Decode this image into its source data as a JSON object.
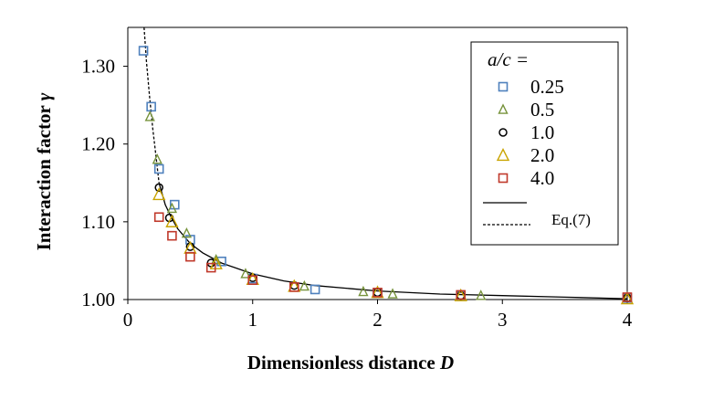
{
  "chart_data": {
    "type": "scatter",
    "xlabel": "Dimensionless distance",
    "xlabel_var": "D",
    "ylabel": "Interaction factor",
    "ylabel_var": "γ",
    "xlim": [
      0,
      4
    ],
    "ylim": [
      1.0,
      1.35
    ],
    "x_ticks": [
      0,
      1,
      2,
      3,
      4
    ],
    "x_tick_labels": [
      "0",
      "1",
      "2",
      "3",
      "4"
    ],
    "y_ticks": [
      1.0,
      1.1,
      1.2,
      1.3
    ],
    "y_tick_labels": [
      "1.00",
      "1.10",
      "1.20",
      "1.30"
    ],
    "grid": false,
    "legend": {
      "title": "a/c =",
      "placement": "top-right",
      "curve_labels": [
        "",
        "Eq.(7)"
      ]
    },
    "series": [
      {
        "name": "0.25",
        "marker": "square",
        "color": "#4f81bd",
        "points": [
          [
            0.125,
            1.32
          ],
          [
            0.1875,
            1.248
          ],
          [
            0.25,
            1.168
          ],
          [
            0.375,
            1.122
          ],
          [
            0.5,
            1.077
          ],
          [
            0.75,
            1.049
          ],
          [
            1.0,
            1.027
          ],
          [
            1.5,
            1.013
          ],
          [
            2.0,
            1.008
          ],
          [
            2.667,
            1.005
          ],
          [
            4.0,
            1.002
          ]
        ]
      },
      {
        "name": "0.5",
        "marker": "triangle",
        "color": "#77933c",
        "points": [
          [
            0.177,
            1.235
          ],
          [
            0.236,
            1.18
          ],
          [
            0.354,
            1.117
          ],
          [
            0.471,
            1.085
          ],
          [
            0.707,
            1.051
          ],
          [
            0.943,
            1.033
          ],
          [
            1.414,
            1.017
          ],
          [
            1.886,
            1.01
          ],
          [
            2.121,
            1.007
          ],
          [
            2.828,
            1.005
          ]
        ]
      },
      {
        "name": "1.0",
        "marker": "circle",
        "color": "#000000",
        "points": [
          [
            0.25,
            1.144
          ],
          [
            0.333,
            1.105
          ],
          [
            0.5,
            1.068
          ],
          [
            0.667,
            1.047
          ],
          [
            1.0,
            1.028
          ],
          [
            1.333,
            1.018
          ],
          [
            2.0,
            1.009
          ],
          [
            2.667,
            1.005
          ],
          [
            4.0,
            1.002
          ]
        ]
      },
      {
        "name": "2.0",
        "marker": "triangle",
        "color": "#c9a400",
        "points": [
          [
            0.25,
            1.135
          ],
          [
            0.354,
            1.1
          ],
          [
            0.5,
            1.066
          ],
          [
            0.707,
            1.046
          ],
          [
            1.0,
            1.026
          ],
          [
            1.333,
            1.017
          ],
          [
            2.0,
            1.009
          ],
          [
            2.667,
            1.005
          ],
          [
            4.0,
            1.001
          ]
        ]
      },
      {
        "name": "4.0",
        "marker": "square",
        "color": "#c0392b",
        "points": [
          [
            0.25,
            1.106
          ],
          [
            0.354,
            1.082
          ],
          [
            0.5,
            1.055
          ],
          [
            0.667,
            1.041
          ],
          [
            1.0,
            1.025
          ],
          [
            1.333,
            1.016
          ],
          [
            2.0,
            1.009
          ],
          [
            2.667,
            1.006
          ],
          [
            4.0,
            1.003
          ]
        ]
      }
    ],
    "curves": [
      {
        "style": "solid",
        "color": "#000000",
        "points": [
          [
            0.25,
            1.15
          ],
          [
            0.3,
            1.122
          ],
          [
            0.35,
            1.105
          ],
          [
            0.4,
            1.091
          ],
          [
            0.5,
            1.072
          ],
          [
            0.6,
            1.06
          ],
          [
            0.75,
            1.047
          ],
          [
            1.0,
            1.033
          ],
          [
            1.25,
            1.024
          ],
          [
            1.5,
            1.018
          ],
          [
            2.0,
            1.011
          ],
          [
            2.5,
            1.007
          ],
          [
            3.0,
            1.005
          ],
          [
            3.5,
            1.003
          ],
          [
            4.0,
            1.001
          ]
        ]
      },
      {
        "style": "dashed",
        "color": "#000000",
        "points": [
          [
            0.13,
            1.35
          ],
          [
            0.15,
            1.305
          ],
          [
            0.175,
            1.26
          ],
          [
            0.2,
            1.22
          ],
          [
            0.225,
            1.185
          ],
          [
            0.25,
            1.15
          ]
        ]
      }
    ]
  }
}
